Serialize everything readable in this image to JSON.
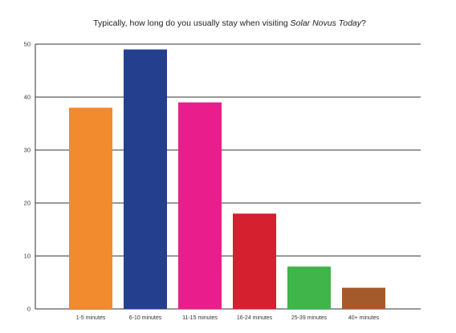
{
  "chart_data": {
    "type": "bar",
    "title": {
      "prefix": "Typically, how long do you usually stay when visiting ",
      "italic": "Solar Novus Today",
      "suffix": "?"
    },
    "xlabel": "",
    "ylabel": "",
    "categories": [
      "1-5 minutes",
      "6-10 minutes",
      "11-15 minutes",
      "16-24 minutes",
      "25-39 minutes",
      "40+ minutes"
    ],
    "values": [
      38,
      49,
      39,
      18,
      8,
      4
    ],
    "colors": [
      "#f28a2e",
      "#233f8e",
      "#ea1d8c",
      "#d4202f",
      "#3fb54a",
      "#a45a2a"
    ],
    "ylim": [
      0,
      50
    ],
    "yticks": [
      0,
      10,
      20,
      30,
      40,
      50
    ],
    "grid": true,
    "legend": "none"
  }
}
